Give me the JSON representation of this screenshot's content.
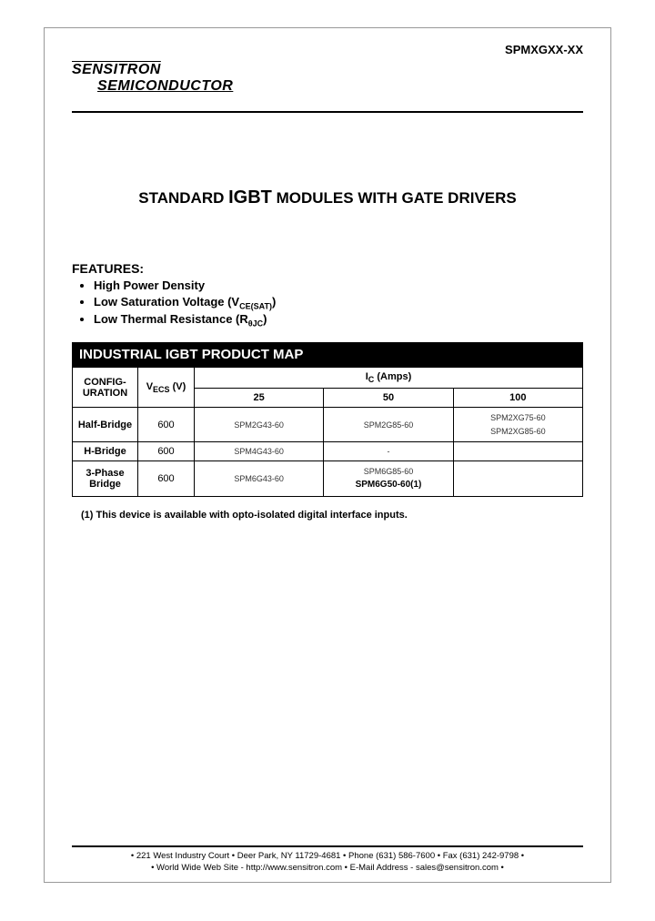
{
  "header": {
    "part_number": "SPMXGXX-XX",
    "company_line1": "SENSITRON",
    "company_line2": "SEMICONDUCTOR"
  },
  "title": {
    "pre": "STANDARD ",
    "big": "IGBT",
    "post": " MODULES WITH GATE DRIVERS"
  },
  "features": {
    "heading": "FEATURES:",
    "items": [
      {
        "text": "High Power Density",
        "sub": ""
      },
      {
        "text": "Low Saturation Voltage (V",
        "sub": "CE(SAT)",
        "tail": ")"
      },
      {
        "text": "Low Thermal Resistance (R",
        "sub": "θJC",
        "tail": ")"
      }
    ]
  },
  "product_map": {
    "header": "INDUSTRIAL IGBT PRODUCT MAP",
    "ic_label_pre": "I",
    "ic_label_sub": "C",
    "ic_label_post": " (Amps)",
    "config_label": "CONFIG-URATION",
    "v_label_pre": "V",
    "v_label_sub": "ECS",
    "v_label_post": " (V)",
    "amp_cols": [
      "25",
      "50",
      "100"
    ],
    "colors": {
      "header_bg": "#000000",
      "header_fg": "#ffffff",
      "border": "#000000",
      "tiny_text": "#333333"
    },
    "rows": [
      {
        "label": "Half-Bridge",
        "v": "600",
        "c25": "SPM2G43-60",
        "c50": "SPM2G85-60",
        "c100_a": "SPM2XG75-60",
        "c100_b": "SPM2XG85-60"
      },
      {
        "label": "H-Bridge",
        "v": "600",
        "c25": "SPM4G43-60",
        "c50": "-",
        "c100_a": "",
        "c100_b": ""
      },
      {
        "label": "3-Phase Bridge",
        "v": "600",
        "c25": "SPM6G43-60",
        "c50_a": "SPM6G85-60",
        "c50_b": "SPM6G50-60(1)",
        "c100_a": "",
        "c100_b": ""
      }
    ]
  },
  "footnote": "(1) This device is available with opto-isolated digital interface inputs.",
  "footer": {
    "line1": "• 221 West Industry Court • Deer Park, NY 11729-4681 • Phone (631) 586-7600 • Fax (631) 242-9798 •",
    "line2": "• World Wide Web Site - http://www.sensitron.com • E-Mail Address - sales@sensitron.com •"
  }
}
